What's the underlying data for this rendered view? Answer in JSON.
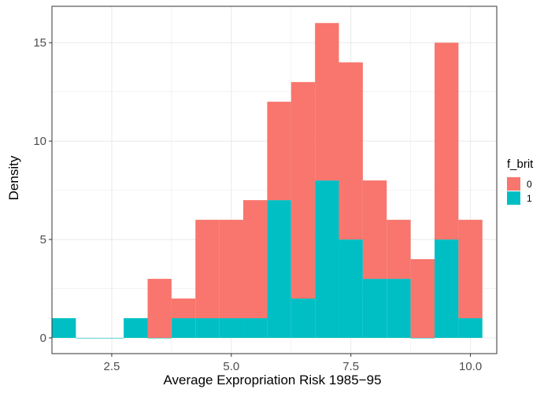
{
  "chart_data": {
    "type": "bar",
    "stacked": true,
    "histogram": true,
    "bin_width": 0.5,
    "x": [
      1.5,
      2.0,
      2.5,
      3.0,
      3.5,
      4.0,
      4.5,
      5.0,
      5.5,
      6.0,
      6.5,
      7.0,
      7.5,
      8.0,
      8.5,
      9.0,
      9.5,
      10.0
    ],
    "series": [
      {
        "name": "0",
        "color": "#F8766D",
        "values": [
          0,
          0,
          0,
          0,
          3,
          1,
          5,
          5,
          6,
          5,
          11,
          8,
          9,
          5,
          3,
          4,
          10,
          5
        ]
      },
      {
        "name": "1",
        "color": "#00BFC4",
        "values": [
          1,
          0,
          0,
          1,
          0,
          1,
          1,
          1,
          1,
          7,
          2,
          8,
          5,
          3,
          3,
          0,
          5,
          1
        ]
      }
    ],
    "xlabel": "Average Expropriation Risk 1985−95",
    "ylabel": "Density",
    "xlim": [
      1.25,
      10.55
    ],
    "ylim": [
      -0.8,
      16.85
    ],
    "x_ticks": [
      2.5,
      5.0,
      7.5,
      10.0
    ],
    "x_tick_labels": [
      "2.5",
      "5.0",
      "7.5",
      "10.0"
    ],
    "y_ticks": [
      0,
      5,
      10,
      15
    ],
    "y_tick_labels": [
      "0",
      "5",
      "10",
      "15"
    ],
    "grid": true,
    "legend": {
      "title": "f_brit",
      "position": "right",
      "entries": [
        "0",
        "1"
      ]
    }
  }
}
